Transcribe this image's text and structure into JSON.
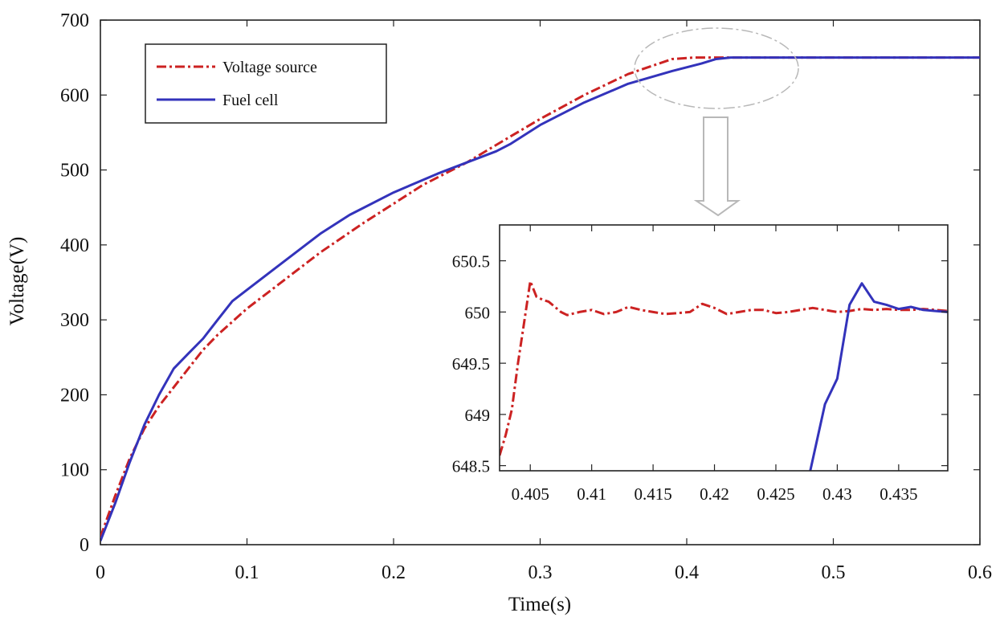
{
  "chart_data": [
    {
      "type": "line",
      "title": "",
      "xlabel": "Time(s)",
      "ylabel": "Voltage(V)",
      "xlim": [
        0,
        0.6
      ],
      "ylim": [
        0,
        700
      ],
      "xticks": [
        0,
        0.1,
        0.2,
        0.3,
        0.4,
        0.5,
        0.6
      ],
      "xtick_labels": [
        "0",
        "0.1",
        "0.2",
        "0.3",
        "0.4",
        "0.5",
        "0.6"
      ],
      "yticks": [
        0,
        100,
        200,
        300,
        400,
        500,
        600,
        700
      ],
      "ytick_labels": [
        "0",
        "100",
        "200",
        "300",
        "400",
        "500",
        "600",
        "700"
      ],
      "legend_position": "top-left",
      "series": [
        {
          "name": "Voltage source",
          "color": "#cc2222",
          "style": "dash-dot",
          "x": [
            0,
            0.01,
            0.02,
            0.03,
            0.04,
            0.05,
            0.06,
            0.07,
            0.08,
            0.1,
            0.12,
            0.15,
            0.18,
            0.2,
            0.22,
            0.25,
            0.28,
            0.3,
            0.33,
            0.36,
            0.39,
            0.405,
            0.41,
            0.42,
            0.5,
            0.6
          ],
          "y": [
            10,
            65,
            115,
            155,
            185,
            210,
            235,
            260,
            280,
            315,
            345,
            390,
            430,
            455,
            480,
            510,
            545,
            568,
            600,
            628,
            648,
            650,
            650,
            650,
            650,
            650
          ]
        },
        {
          "name": "Fuel cell",
          "color": "#3333bb",
          "style": "solid",
          "x": [
            0,
            0.01,
            0.02,
            0.03,
            0.04,
            0.05,
            0.06,
            0.07,
            0.08,
            0.09,
            0.1,
            0.12,
            0.15,
            0.17,
            0.2,
            0.23,
            0.25,
            0.27,
            0.28,
            0.3,
            0.33,
            0.36,
            0.39,
            0.41,
            0.42,
            0.43,
            0.5,
            0.6
          ],
          "y": [
            5,
            55,
            110,
            160,
            200,
            235,
            255,
            275,
            300,
            325,
            340,
            370,
            415,
            440,
            470,
            495,
            510,
            525,
            535,
            560,
            590,
            615,
            632,
            642,
            648,
            650,
            650,
            650
          ]
        }
      ]
    },
    {
      "type": "line",
      "title": "",
      "xlabel": "",
      "ylabel": "",
      "xlim": [
        0.4025,
        0.439
      ],
      "ylim": [
        648.45,
        650.85
      ],
      "xticks": [
        0.405,
        0.41,
        0.415,
        0.42,
        0.425,
        0.43,
        0.435
      ],
      "xtick_labels": [
        "0.405",
        "0.41",
        "0.415",
        "0.42",
        "0.425",
        "0.43",
        "0.435"
      ],
      "yticks": [
        648.5,
        649,
        649.5,
        650,
        650.5
      ],
      "ytick_labels": [
        "648.5",
        "649",
        "649.5",
        "650",
        "650.5"
      ],
      "series": [
        {
          "name": "Voltage source",
          "color": "#cc2222",
          "style": "dash-dot",
          "x": [
            0.4025,
            0.403,
            0.4035,
            0.404,
            0.4045,
            0.405,
            0.4055,
            0.406,
            0.4065,
            0.407,
            0.4075,
            0.408,
            0.409,
            0.41,
            0.411,
            0.412,
            0.413,
            0.414,
            0.415,
            0.416,
            0.417,
            0.418,
            0.419,
            0.42,
            0.421,
            0.422,
            0.423,
            0.424,
            0.425,
            0.426,
            0.427,
            0.428,
            0.429,
            0.43,
            0.431,
            0.432,
            0.433,
            0.434,
            0.435,
            0.436,
            0.437,
            0.438,
            0.439
          ],
          "y": [
            648.6,
            648.8,
            649.05,
            649.5,
            649.9,
            650.3,
            650.15,
            650.12,
            650.1,
            650.05,
            650.0,
            649.97,
            650.0,
            650.02,
            649.98,
            650.0,
            650.05,
            650.02,
            650.0,
            649.98,
            649.99,
            650.0,
            650.08,
            650.04,
            649.98,
            650.0,
            650.02,
            650.02,
            649.99,
            650.0,
            650.02,
            650.04,
            650.02,
            650.0,
            650.01,
            650.03,
            650.02,
            650.03,
            650.02,
            650.02,
            650.03,
            650.02,
            650.01
          ]
        },
        {
          "name": "Fuel cell",
          "color": "#3333bb",
          "style": "solid",
          "x": [
            0.4278,
            0.429,
            0.43,
            0.431,
            0.432,
            0.433,
            0.434,
            0.435,
            0.436,
            0.437,
            0.438,
            0.439
          ],
          "y": [
            648.45,
            649.1,
            649.35,
            650.07,
            650.28,
            650.1,
            650.07,
            650.03,
            650.05,
            650.02,
            650.01,
            650.0
          ]
        }
      ]
    }
  ]
}
